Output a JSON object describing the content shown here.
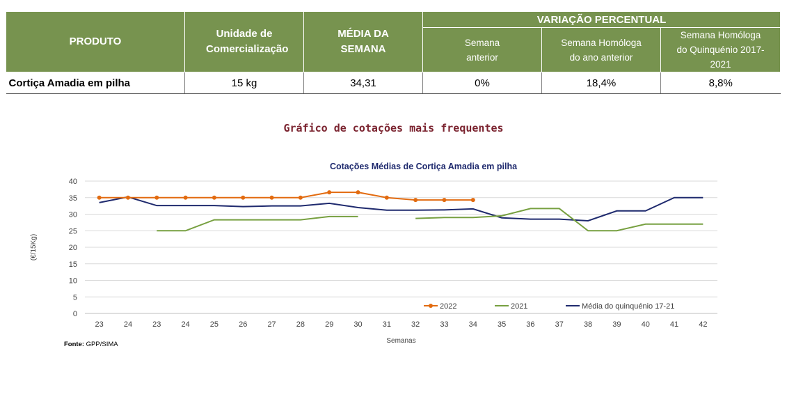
{
  "table": {
    "headers": {
      "produto": "PRODUTO",
      "unidade": "Unidade de Comercialização",
      "media": "MÉDIA DA SEMANA",
      "variacao": "VARIAÇÃO PERCENTUAL",
      "semana_anterior": "Semana anterior",
      "homologa_ano": "Semana Homóloga do ano anterior",
      "homologa_quinq": "Semana Homóloga do Quinquénio 2017-2021"
    },
    "row": {
      "produto": "Cortiça Amadia em pilha",
      "unidade": "15 kg",
      "media": "34,31",
      "semana_anterior": "0%",
      "homologa_ano": "18,4%",
      "homologa_quinq": "8,8%"
    }
  },
  "chart_heading": "Gráfico de cotações mais frequentes",
  "source": {
    "label": "Fonte:",
    "value": "GPP/SIMA"
  },
  "chart_data": {
    "type": "line",
    "title": "Cotações Médias de Cortiça Amadia em pilha",
    "xlabel": "Semanas",
    "ylabel": "(€/15Kg)",
    "ylim": [
      0,
      40
    ],
    "yticks": [
      0,
      5,
      10,
      15,
      20,
      25,
      30,
      35,
      40
    ],
    "grid": true,
    "legend": "bottom-right, inside plot",
    "categories": [
      "23",
      "24",
      "23",
      "24",
      "25",
      "26",
      "27",
      "28",
      "29",
      "30",
      "31",
      "32",
      "33",
      "34",
      "35",
      "36",
      "37",
      "38",
      "39",
      "40",
      "41",
      "42"
    ],
    "series": [
      {
        "name": "2022",
        "color": "#e26b10",
        "markers": true,
        "values": [
          35,
          35,
          35,
          35,
          35,
          35,
          35,
          35,
          36.6,
          36.6,
          35,
          34.3,
          34.3,
          34.3,
          null,
          null,
          null,
          null,
          null,
          null,
          null,
          null
        ]
      },
      {
        "name": "2021",
        "color": "#77a040",
        "markers": false,
        "values": [
          null,
          null,
          25,
          25,
          28.3,
          28.3,
          28.3,
          28.3,
          29.3,
          29.3,
          null,
          28.7,
          29,
          29,
          29.5,
          31.7,
          31.7,
          25,
          25,
          27,
          27,
          27
        ]
      },
      {
        "name": "Média do quinquénio 17-21",
        "color": "#1f2a6e",
        "markers": false,
        "values": [
          33.5,
          35.2,
          32.6,
          32.6,
          32.6,
          32.3,
          32.5,
          32.5,
          33.3,
          32,
          31.2,
          31.2,
          31.3,
          31.6,
          28.9,
          28.5,
          28.5,
          28,
          31,
          31,
          35,
          35
        ]
      }
    ]
  }
}
